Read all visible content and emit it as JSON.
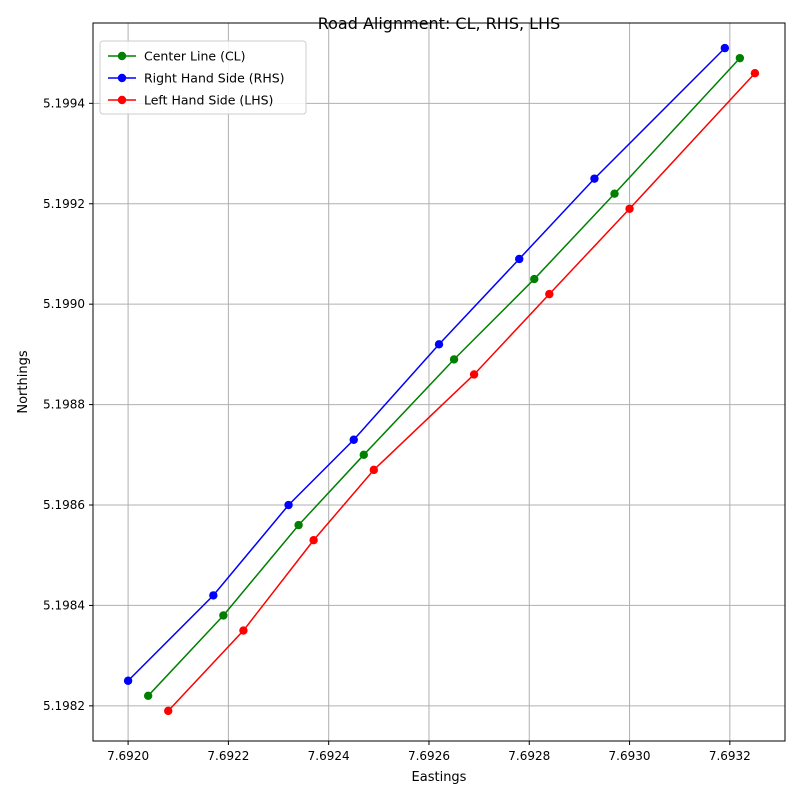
{
  "chart_data": {
    "type": "line",
    "title": "Road Alignment: CL, RHS, LHS",
    "xlabel": "Eastings",
    "ylabel": "Northings",
    "xlim": [
      7.69193,
      7.69331
    ],
    "ylim": [
      5.19813,
      5.19956
    ],
    "grid": true,
    "legend_position": "top-left",
    "x_ticks": [
      {
        "value": 7.692,
        "label": "7.6920"
      },
      {
        "value": 7.6922,
        "label": "7.6922"
      },
      {
        "value": 7.6924,
        "label": "7.6924"
      },
      {
        "value": 7.6926,
        "label": "7.6926"
      },
      {
        "value": 7.6928,
        "label": "7.6928"
      },
      {
        "value": 7.693,
        "label": "7.6930"
      },
      {
        "value": 7.6932,
        "label": "7.6932"
      }
    ],
    "y_ticks": [
      {
        "value": 5.1982,
        "label": "5.1982"
      },
      {
        "value": 5.1984,
        "label": "5.1984"
      },
      {
        "value": 5.1986,
        "label": "5.1986"
      },
      {
        "value": 5.1988,
        "label": "5.1988"
      },
      {
        "value": 5.199,
        "label": "5.1990"
      },
      {
        "value": 5.1992,
        "label": "5.1992"
      },
      {
        "value": 5.1994,
        "label": "5.1994"
      }
    ],
    "series": [
      {
        "name": "Center Line (CL)",
        "color": "#008000",
        "points": [
          [
            7.69204,
            5.19822
          ],
          [
            7.69219,
            5.19838
          ],
          [
            7.69234,
            5.19856
          ],
          [
            7.69247,
            5.1987
          ],
          [
            7.69265,
            5.19889
          ],
          [
            7.69281,
            5.19905
          ],
          [
            7.69297,
            5.19922
          ],
          [
            7.69322,
            5.19949
          ]
        ]
      },
      {
        "name": "Right Hand Side (RHS)",
        "color": "#0000ff",
        "points": [
          [
            7.692,
            5.19825
          ],
          [
            7.69217,
            5.19842
          ],
          [
            7.69232,
            5.1986
          ],
          [
            7.69245,
            5.19873
          ],
          [
            7.69262,
            5.19892
          ],
          [
            7.69278,
            5.19909
          ],
          [
            7.69293,
            5.19925
          ],
          [
            7.69319,
            5.19951
          ]
        ]
      },
      {
        "name": "Left Hand Side (LHS)",
        "color": "#ff0000",
        "points": [
          [
            7.69208,
            5.19819
          ],
          [
            7.69223,
            5.19835
          ],
          [
            7.69237,
            5.19853
          ],
          [
            7.69249,
            5.19867
          ],
          [
            7.69269,
            5.19886
          ],
          [
            7.69284,
            5.19902
          ],
          [
            7.693,
            5.19919
          ],
          [
            7.69325,
            5.19946
          ]
        ]
      }
    ]
  }
}
